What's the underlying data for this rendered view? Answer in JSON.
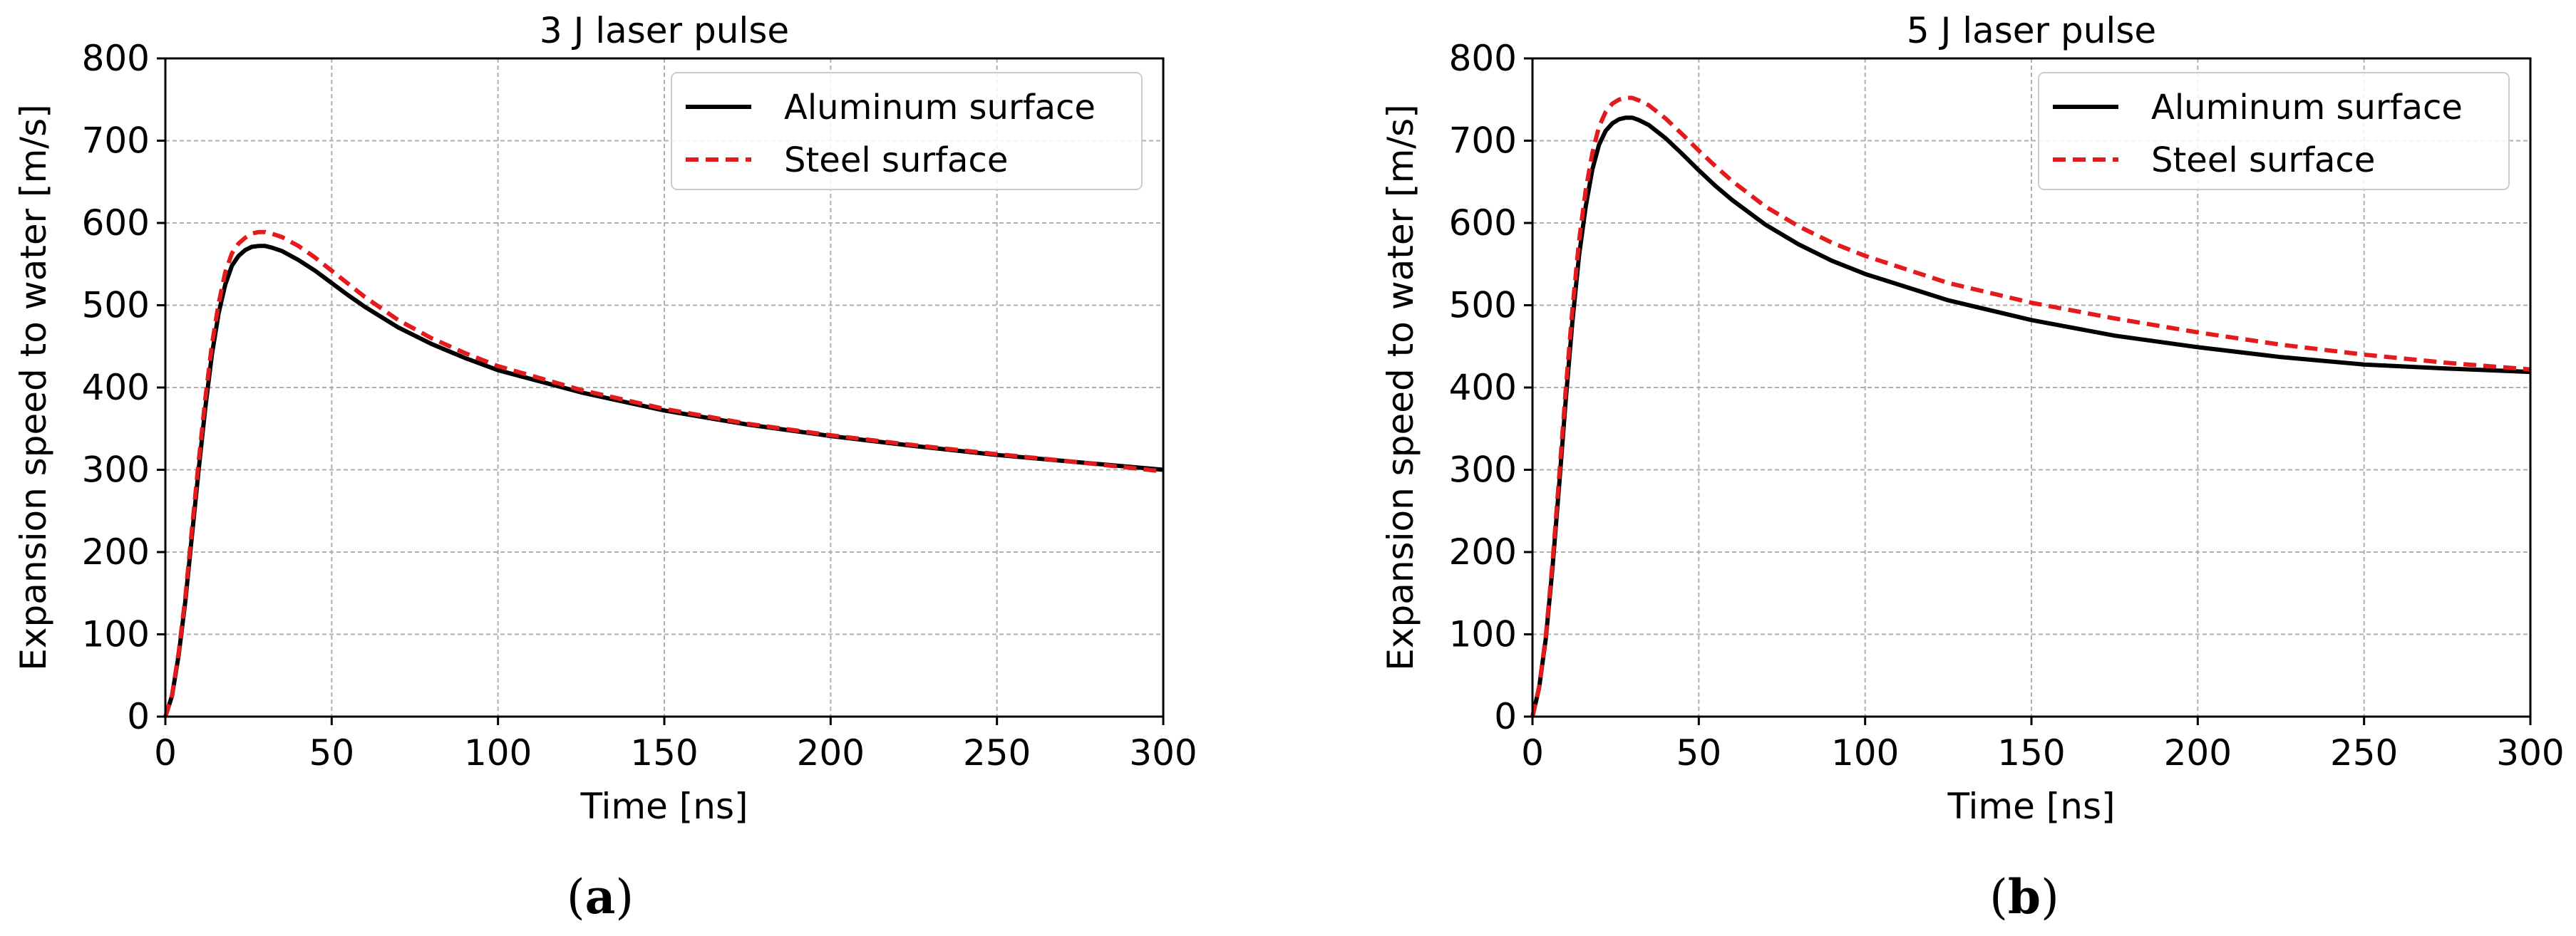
{
  "figure": {
    "subfigure_labels": [
      {
        "open": "(",
        "letter": "a",
        "close": ")"
      },
      {
        "open": "(",
        "letter": "b",
        "close": ")"
      }
    ]
  },
  "chart_data": [
    {
      "type": "line",
      "title": "3 J laser pulse",
      "xlabel": "Time [ns]",
      "ylabel": "Expansion speed to water [m/s]",
      "xlim": [
        0,
        300
      ],
      "ylim": [
        0,
        800
      ],
      "xticks": [
        0,
        50,
        100,
        150,
        200,
        250,
        300
      ],
      "yticks": [
        0,
        100,
        200,
        300,
        400,
        500,
        600,
        700,
        800
      ],
      "grid": true,
      "legend_position": "top-right",
      "x": [
        0,
        2,
        4,
        6,
        8,
        10,
        12,
        14,
        16,
        18,
        20,
        22,
        24,
        26,
        28,
        30,
        32,
        35,
        40,
        45,
        50,
        55,
        60,
        70,
        80,
        90,
        100,
        125,
        150,
        175,
        200,
        225,
        250,
        275,
        300
      ],
      "series": [
        {
          "name": "Aluminum surface",
          "color": "#000000",
          "style": "solid",
          "values": [
            0,
            25,
            75,
            140,
            220,
            300,
            375,
            440,
            490,
            525,
            548,
            560,
            567,
            571,
            572,
            572,
            570,
            566,
            555,
            542,
            527,
            512,
            498,
            473,
            453,
            436,
            421,
            394,
            372,
            355,
            341,
            329,
            318,
            309,
            300
          ]
        },
        {
          "name": "Steel surface",
          "color": "#e41a1c",
          "style": "dashed",
          "values": [
            0,
            26,
            78,
            145,
            228,
            310,
            386,
            452,
            502,
            540,
            563,
            575,
            582,
            587,
            589,
            589,
            587,
            583,
            572,
            558,
            542,
            526,
            510,
            482,
            460,
            442,
            426,
            397,
            374,
            356,
            342,
            330,
            319,
            309,
            298
          ]
        }
      ]
    },
    {
      "type": "line",
      "title": "5 J laser pulse",
      "xlabel": "Time [ns]",
      "ylabel": "Expansion speed to water [m/s]",
      "xlim": [
        0,
        300
      ],
      "ylim": [
        0,
        800
      ],
      "xticks": [
        0,
        50,
        100,
        150,
        200,
        250,
        300
      ],
      "yticks": [
        0,
        100,
        200,
        300,
        400,
        500,
        600,
        700,
        800
      ],
      "grid": true,
      "legend_position": "top-right",
      "x": [
        0,
        2,
        4,
        6,
        8,
        10,
        12,
        14,
        16,
        18,
        20,
        22,
        24,
        26,
        28,
        30,
        32,
        35,
        40,
        45,
        50,
        55,
        60,
        70,
        80,
        90,
        100,
        125,
        150,
        175,
        200,
        225,
        250,
        275,
        300
      ],
      "series": [
        {
          "name": "Aluminum surface",
          "color": "#000000",
          "style": "solid",
          "values": [
            0,
            35,
            95,
            180,
            280,
            385,
            480,
            560,
            620,
            665,
            695,
            712,
            721,
            726,
            728,
            728,
            725,
            719,
            703,
            684,
            664,
            645,
            628,
            598,
            574,
            554,
            538,
            506,
            482,
            463,
            449,
            437,
            428,
            423,
            419
          ]
        },
        {
          "name": "Steel surface",
          "color": "#e41a1c",
          "style": "dashed",
          "values": [
            0,
            36,
            98,
            186,
            290,
            398,
            495,
            578,
            640,
            685,
            717,
            735,
            745,
            750,
            752,
            752,
            749,
            743,
            727,
            708,
            688,
            669,
            651,
            620,
            596,
            576,
            560,
            527,
            503,
            484,
            467,
            452,
            440,
            430,
            422
          ]
        }
      ]
    }
  ]
}
